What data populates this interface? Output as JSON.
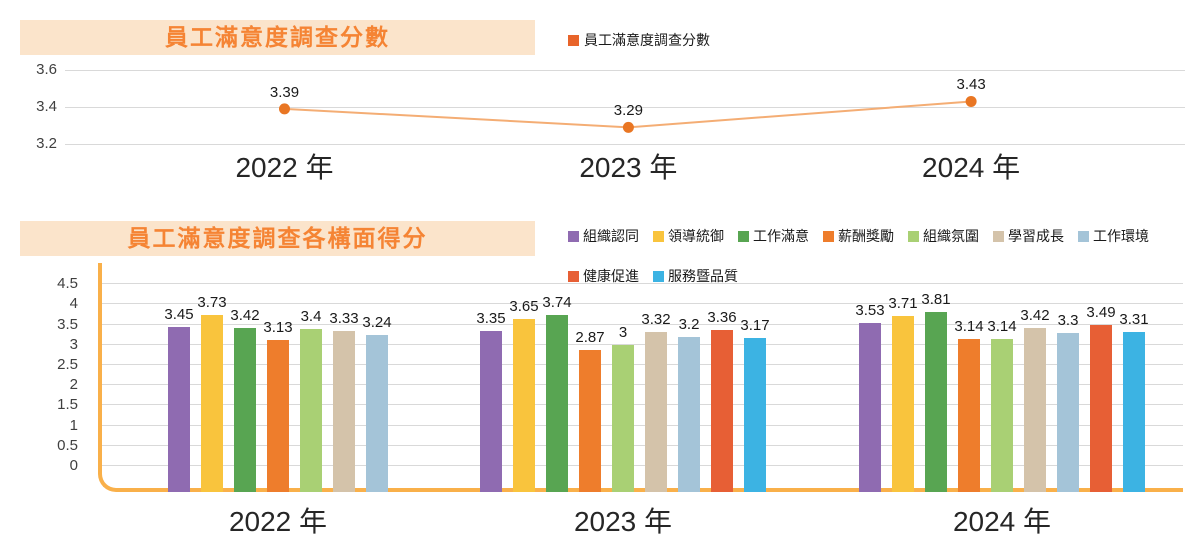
{
  "styles": {
    "title_bg": "#fbe4cb",
    "title_color": "#f58434",
    "grid_color": "#d9d9d9",
    "tick_color": "#3f3f3f",
    "value_color": "#1a1a1a",
    "category_color": "#262626",
    "axis_color": "#f9b04a"
  },
  "chart_data": [
    {
      "type": "line",
      "title": "員工滿意度調查分數",
      "categories": [
        "2022 年",
        "2023 年",
        "2024 年"
      ],
      "series": [
        {
          "name": "員工滿意度調查分數",
          "values": [
            3.39,
            3.29,
            3.43
          ],
          "marker_color": "#e97623",
          "line_color": "#f4ad74",
          "legend_color": "#e8642a"
        }
      ],
      "value_labels": [
        "3.39",
        "3.29",
        "3.43"
      ],
      "y_ticks": [
        3.6,
        3.4,
        3.2
      ],
      "y_tick_labels": [
        "3.6",
        "3.4",
        "3.2"
      ],
      "ylim": [
        3.1,
        3.65
      ],
      "grid": true,
      "legend_position": "top-right"
    },
    {
      "type": "bar",
      "title": "員工滿意度調查各構面得分",
      "categories": [
        "2022 年",
        "2023 年",
        "2024 年"
      ],
      "series": [
        {
          "name": "組織認同",
          "color": "#8f6bb1",
          "values": [
            3.45,
            3.35,
            3.53
          ]
        },
        {
          "name": "領導統御",
          "color": "#f9c43d",
          "values": [
            3.73,
            3.65,
            3.71
          ]
        },
        {
          "name": "工作滿意",
          "color": "#58a552",
          "values": [
            3.42,
            3.74,
            3.81
          ]
        },
        {
          "name": "薪酬獎勵",
          "color": "#ee7d2c",
          "values": [
            3.13,
            2.87,
            3.14
          ]
        },
        {
          "name": "組織氛圍",
          "color": "#a9d074",
          "values": [
            3.4,
            3,
            3.14
          ]
        },
        {
          "name": "學習成長",
          "color": "#d4c3aa",
          "values": [
            3.33,
            3.32,
            3.42
          ]
        },
        {
          "name": "工作環境",
          "color": "#a4c4d8",
          "values": [
            3.24,
            3.2,
            3.3
          ]
        },
        {
          "name": "健康促進",
          "color": "#e75f35",
          "values": [
            null,
            3.36,
            3.49
          ]
        },
        {
          "name": "服務暨品質",
          "color": "#3cb3e3",
          "values": [
            null,
            3.17,
            3.31
          ]
        }
      ],
      "value_labels": [
        [
          "3.45",
          "3.73",
          "3.42",
          "3.13",
          "3.4",
          "3.33",
          "3.24"
        ],
        [
          "3.35",
          "3.65",
          "3.74",
          "2.87",
          "3",
          "3.32",
          "3.2",
          "3.36",
          "3.17"
        ],
        [
          "3.53",
          "3.71",
          "3.81",
          "3.14",
          "3.14",
          "3.42",
          "3.3",
          "3.49",
          "3.31"
        ]
      ],
      "y_ticks": [
        0,
        0.5,
        1,
        1.5,
        2,
        2.5,
        3,
        3.5,
        4,
        4.5
      ],
      "y_tick_labels": [
        "0",
        "0.5",
        "1",
        "1.5",
        "2",
        "2.5",
        "3",
        "3.5",
        "4",
        "4.5"
      ],
      "ylim": [
        0,
        4.75
      ],
      "grid": true,
      "legend_position": "top-right",
      "legend_rows": [
        7,
        2
      ]
    }
  ]
}
